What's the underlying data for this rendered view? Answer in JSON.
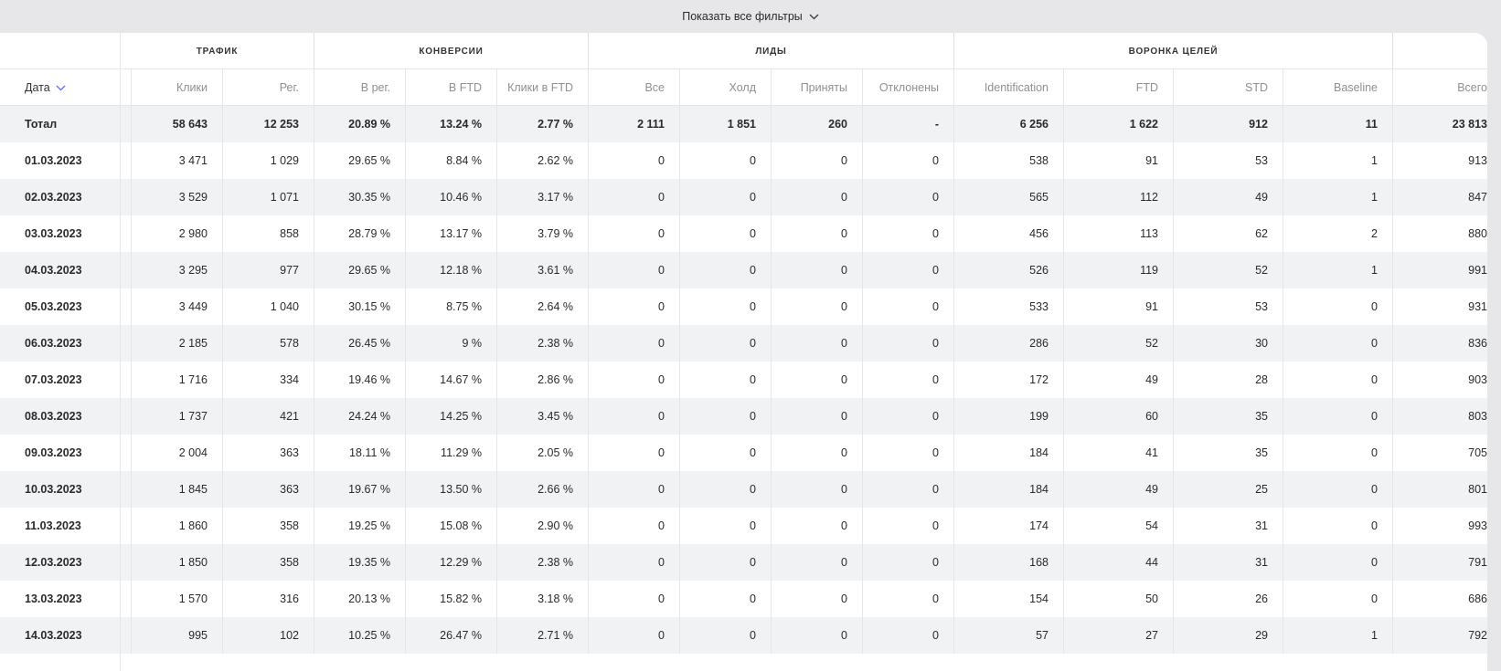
{
  "filters": {
    "show_all_label": "Показать все фильтры"
  },
  "groups": [
    {
      "label": "ТРАФИК"
    },
    {
      "label": "КОНВЕРСИИ"
    },
    {
      "label": "ЛИДЫ"
    },
    {
      "label": "ВОРОНКА ЦЕЛЕЙ"
    }
  ],
  "columns": [
    {
      "label": "Дата"
    },
    {
      "label": "Клики"
    },
    {
      "label": "Рег."
    },
    {
      "label": "В рег."
    },
    {
      "label": "В FTD"
    },
    {
      "label": "Клики в FTD"
    },
    {
      "label": "Все"
    },
    {
      "label": "Холд"
    },
    {
      "label": "Приняты"
    },
    {
      "label": "Отклонены"
    },
    {
      "label": "Identification"
    },
    {
      "label": "FTD"
    },
    {
      "label": "STD"
    },
    {
      "label": "Baseline"
    },
    {
      "label": "Всего"
    }
  ],
  "rows": [
    {
      "cells": [
        "Тотал",
        "58 643",
        "12 253",
        "20.89 %",
        "13.24 %",
        "2.77 %",
        "2 111",
        "1 851",
        "260",
        "-",
        "6 256",
        "1 622",
        "912",
        "11",
        "23 813"
      ]
    },
    {
      "cells": [
        "01.03.2023",
        "3 471",
        "1 029",
        "29.65 %",
        "8.84 %",
        "2.62 %",
        "0",
        "0",
        "0",
        "0",
        "538",
        "91",
        "53",
        "1",
        "913"
      ]
    },
    {
      "cells": [
        "02.03.2023",
        "3 529",
        "1 071",
        "30.35 %",
        "10.46 %",
        "3.17 %",
        "0",
        "0",
        "0",
        "0",
        "565",
        "112",
        "49",
        "1",
        "847"
      ]
    },
    {
      "cells": [
        "03.03.2023",
        "2 980",
        "858",
        "28.79 %",
        "13.17 %",
        "3.79 %",
        "0",
        "0",
        "0",
        "0",
        "456",
        "113",
        "62",
        "2",
        "880"
      ]
    },
    {
      "cells": [
        "04.03.2023",
        "3 295",
        "977",
        "29.65 %",
        "12.18 %",
        "3.61 %",
        "0",
        "0",
        "0",
        "0",
        "526",
        "119",
        "52",
        "1",
        "991"
      ]
    },
    {
      "cells": [
        "05.03.2023",
        "3 449",
        "1 040",
        "30.15 %",
        "8.75 %",
        "2.64 %",
        "0",
        "0",
        "0",
        "0",
        "533",
        "91",
        "53",
        "0",
        "931"
      ]
    },
    {
      "cells": [
        "06.03.2023",
        "2 185",
        "578",
        "26.45 %",
        "9 %",
        "2.38 %",
        "0",
        "0",
        "0",
        "0",
        "286",
        "52",
        "30",
        "0",
        "836"
      ]
    },
    {
      "cells": [
        "07.03.2023",
        "1 716",
        "334",
        "19.46 %",
        "14.67 %",
        "2.86 %",
        "0",
        "0",
        "0",
        "0",
        "172",
        "49",
        "28",
        "0",
        "903"
      ]
    },
    {
      "cells": [
        "08.03.2023",
        "1 737",
        "421",
        "24.24 %",
        "14.25 %",
        "3.45 %",
        "0",
        "0",
        "0",
        "0",
        "199",
        "60",
        "35",
        "0",
        "803"
      ]
    },
    {
      "cells": [
        "09.03.2023",
        "2 004",
        "363",
        "18.11 %",
        "11.29 %",
        "2.05 %",
        "0",
        "0",
        "0",
        "0",
        "184",
        "41",
        "35",
        "0",
        "705"
      ]
    },
    {
      "cells": [
        "10.03.2023",
        "1 845",
        "363",
        "19.67 %",
        "13.50 %",
        "2.66 %",
        "0",
        "0",
        "0",
        "0",
        "184",
        "49",
        "25",
        "0",
        "801"
      ]
    },
    {
      "cells": [
        "11.03.2023",
        "1 860",
        "358",
        "19.25 %",
        "15.08 %",
        "2.90 %",
        "0",
        "0",
        "0",
        "0",
        "174",
        "54",
        "31",
        "0",
        "993"
      ]
    },
    {
      "cells": [
        "12.03.2023",
        "1 850",
        "358",
        "19.35 %",
        "12.29 %",
        "2.38 %",
        "0",
        "0",
        "0",
        "0",
        "168",
        "44",
        "31",
        "0",
        "791"
      ]
    },
    {
      "cells": [
        "13.03.2023",
        "1 570",
        "316",
        "20.13 %",
        "15.82 %",
        "3.18 %",
        "0",
        "0",
        "0",
        "0",
        "154",
        "50",
        "26",
        "0",
        "686"
      ]
    },
    {
      "cells": [
        "14.03.2023",
        "995",
        "102",
        "10.25 %",
        "26.47 %",
        "2.71 %",
        "0",
        "0",
        "0",
        "0",
        "57",
        "27",
        "29",
        "1",
        "792"
      ]
    }
  ]
}
